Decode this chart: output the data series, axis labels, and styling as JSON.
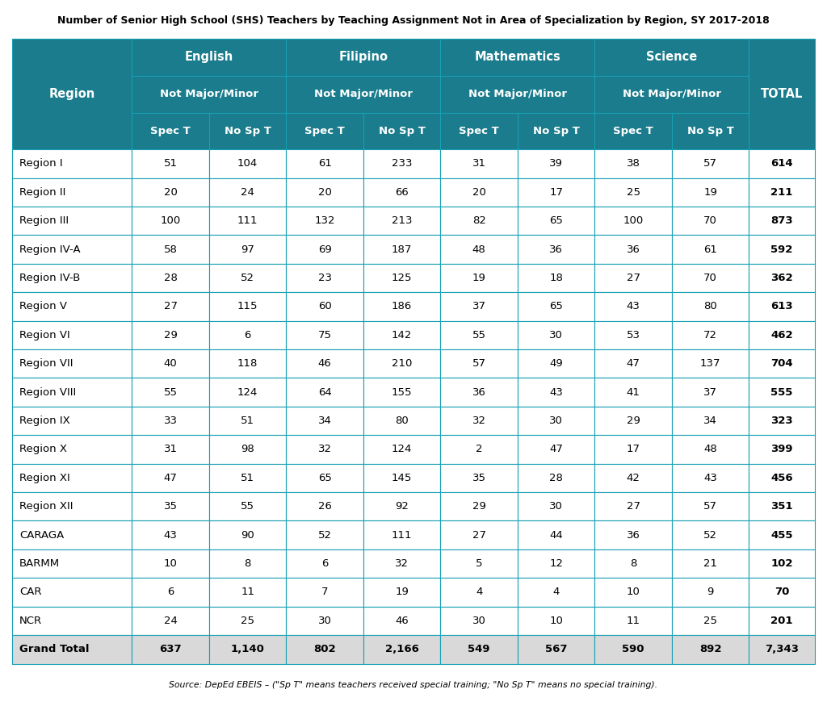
{
  "title": "Number of Senior High School (SHS) Teachers by Teaching Assignment Not in Area of Specialization by Region, SY 2017-2018",
  "source_note": "Source: DepEd EBEIS – (\"Sp T\" means teachers received special training; \"No Sp T\" means no special training).",
  "header_bg": "#1a7c8c",
  "header_text": "#ffffff",
  "data_bg": "#ffffff",
  "grand_total_bg": "#d9d9d9",
  "border_color": "#17a0b4",
  "regions": [
    "Region I",
    "Region II",
    "Region III",
    "Region IV-A",
    "Region IV-B",
    "Region V",
    "Region VI",
    "Region VII",
    "Region VIII",
    "Region IX",
    "Region X",
    "Region XI",
    "Region XII",
    "CARAGA",
    "BARMM",
    "CAR",
    "NCR"
  ],
  "data": [
    [
      51,
      104,
      61,
      233,
      31,
      39,
      38,
      57,
      614
    ],
    [
      20,
      24,
      20,
      66,
      20,
      17,
      25,
      19,
      211
    ],
    [
      100,
      111,
      132,
      213,
      82,
      65,
      100,
      70,
      873
    ],
    [
      58,
      97,
      69,
      187,
      48,
      36,
      36,
      61,
      592
    ],
    [
      28,
      52,
      23,
      125,
      19,
      18,
      27,
      70,
      362
    ],
    [
      27,
      115,
      60,
      186,
      37,
      65,
      43,
      80,
      613
    ],
    [
      29,
      6,
      75,
      142,
      55,
      30,
      53,
      72,
      462
    ],
    [
      40,
      118,
      46,
      210,
      57,
      49,
      47,
      137,
      704
    ],
    [
      55,
      124,
      64,
      155,
      36,
      43,
      41,
      37,
      555
    ],
    [
      33,
      51,
      34,
      80,
      32,
      30,
      29,
      34,
      323
    ],
    [
      31,
      98,
      32,
      124,
      2,
      47,
      17,
      48,
      399
    ],
    [
      47,
      51,
      65,
      145,
      35,
      28,
      42,
      43,
      456
    ],
    [
      35,
      55,
      26,
      92,
      29,
      30,
      27,
      57,
      351
    ],
    [
      43,
      90,
      52,
      111,
      27,
      44,
      36,
      52,
      455
    ],
    [
      10,
      8,
      6,
      32,
      5,
      12,
      8,
      21,
      102
    ],
    [
      6,
      11,
      7,
      19,
      4,
      4,
      10,
      9,
      70
    ],
    [
      24,
      25,
      30,
      46,
      30,
      10,
      11,
      25,
      201
    ]
  ],
  "grand_total_label": "Grand Total",
  "grand_total": [
    "637",
    "1,140",
    "802",
    "2,166",
    "549",
    "567",
    "590",
    "892",
    "7,343"
  ],
  "col_widths_rel": [
    1.55,
    1.0,
    1.0,
    1.0,
    1.0,
    1.0,
    1.0,
    1.0,
    1.0,
    0.85
  ],
  "header_fontsize": 9.5,
  "data_fontsize": 9.5,
  "title_fontsize": 9.0,
  "source_fontsize": 7.8,
  "lw": 0.8
}
